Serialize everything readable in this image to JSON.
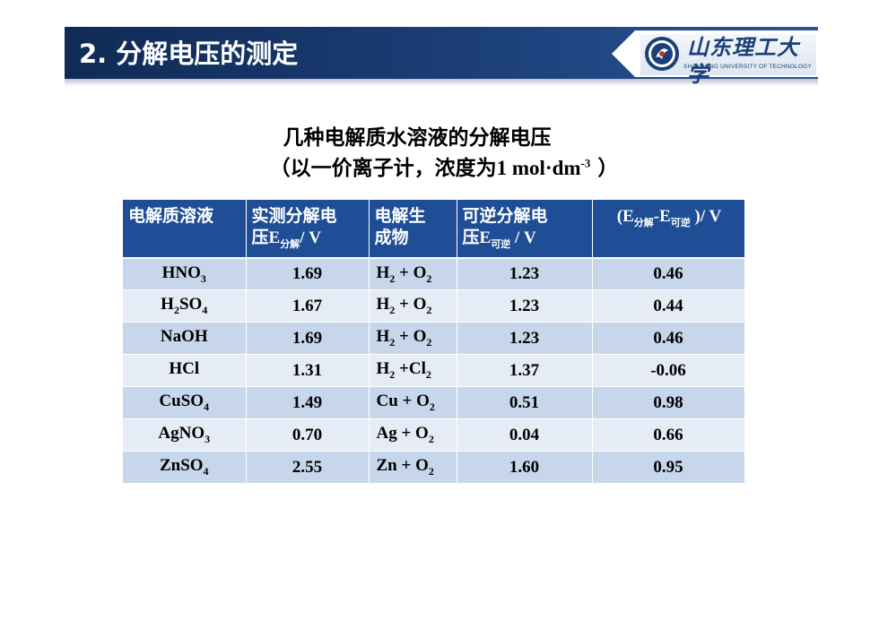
{
  "header": {
    "title": "2. 分解电压的测定",
    "logo_script": "山东理工大学",
    "logo_english": "SHANDONG UNIVERSITY OF TECHNOLOGY"
  },
  "heading": {
    "line1": "几种电解质水溶液的分解电压",
    "line2_prefix": "（以一价离子计，浓度为",
    "line2_conc": "1 mol·dm",
    "line2_exp": "-3",
    "line2_suffix": " ）"
  },
  "table": {
    "headers": {
      "col1": "电解质溶液",
      "col2_a": "实测分解电",
      "col2_b": "压E",
      "col2_sub": "分解",
      "col2_unit": "/ V",
      "col3_a": "电解生",
      "col3_b": "成物",
      "col4_a": "可逆分解电",
      "col4_b": "压E",
      "col4_sub": "可逆",
      "col4_unit": " / V",
      "col5_a": "(E",
      "col5_sub1": "分解",
      "col5_mid": "-E",
      "col5_sub2": "可逆",
      "col5_unit": " )/ V"
    },
    "rows": [
      {
        "sol": "HNO",
        "sol_sub": "3",
        "sol_post": "",
        "sol_sub2": "",
        "measured": "1.69",
        "p1": "H",
        "p1s": "2",
        "p2": " + O",
        "p2s": "2",
        "reversible": "1.23",
        "diff": "0.46"
      },
      {
        "sol": "H",
        "sol_sub": "2",
        "sol_post": "SO",
        "sol_sub2": "4",
        "measured": "1.67",
        "p1": "H",
        "p1s": "2",
        "p2": " + O",
        "p2s": "2",
        "reversible": "1.23",
        "diff": "0.44"
      },
      {
        "sol": "NaOH",
        "sol_sub": "",
        "sol_post": "",
        "sol_sub2": "",
        "measured": "1.69",
        "p1": "H",
        "p1s": "2",
        "p2": " + O",
        "p2s": "2",
        "reversible": "1.23",
        "diff": "0.46"
      },
      {
        "sol": "HCl",
        "sol_sub": "",
        "sol_post": "",
        "sol_sub2": "",
        "measured": "1.31",
        "p1": "H",
        "p1s": "2",
        "p2": " +Cl",
        "p2s": "2",
        "reversible": "1.37",
        "diff": "-0.06"
      },
      {
        "sol": "CuSO",
        "sol_sub": "4",
        "sol_post": "",
        "sol_sub2": "",
        "measured": "1.49",
        "p1": "Cu + O",
        "p1s": "2",
        "p2": "",
        "p2s": "",
        "reversible": "0.51",
        "diff": "0.98"
      },
      {
        "sol": "AgNO",
        "sol_sub": "3",
        "sol_post": "",
        "sol_sub2": "",
        "measured": "0.70",
        "p1": "Ag + O",
        "p1s": "2",
        "p2": "",
        "p2s": "",
        "reversible": "0.04",
        "diff": "0.66"
      },
      {
        "sol": "ZnSO",
        "sol_sub": "4",
        "sol_post": "",
        "sol_sub2": "",
        "measured": "2.55",
        "p1": "Zn + O",
        "p1s": "2",
        "p2": "",
        "p2s": "",
        "reversible": "1.60",
        "diff": "0.95"
      }
    ]
  },
  "colors": {
    "header_bar": "#1c3f78",
    "table_header": "#1f4e96",
    "row_odd": "#c7d6ea",
    "row_even": "#e6ecf5"
  },
  "icons": {
    "logo": "university-emblem-icon"
  }
}
